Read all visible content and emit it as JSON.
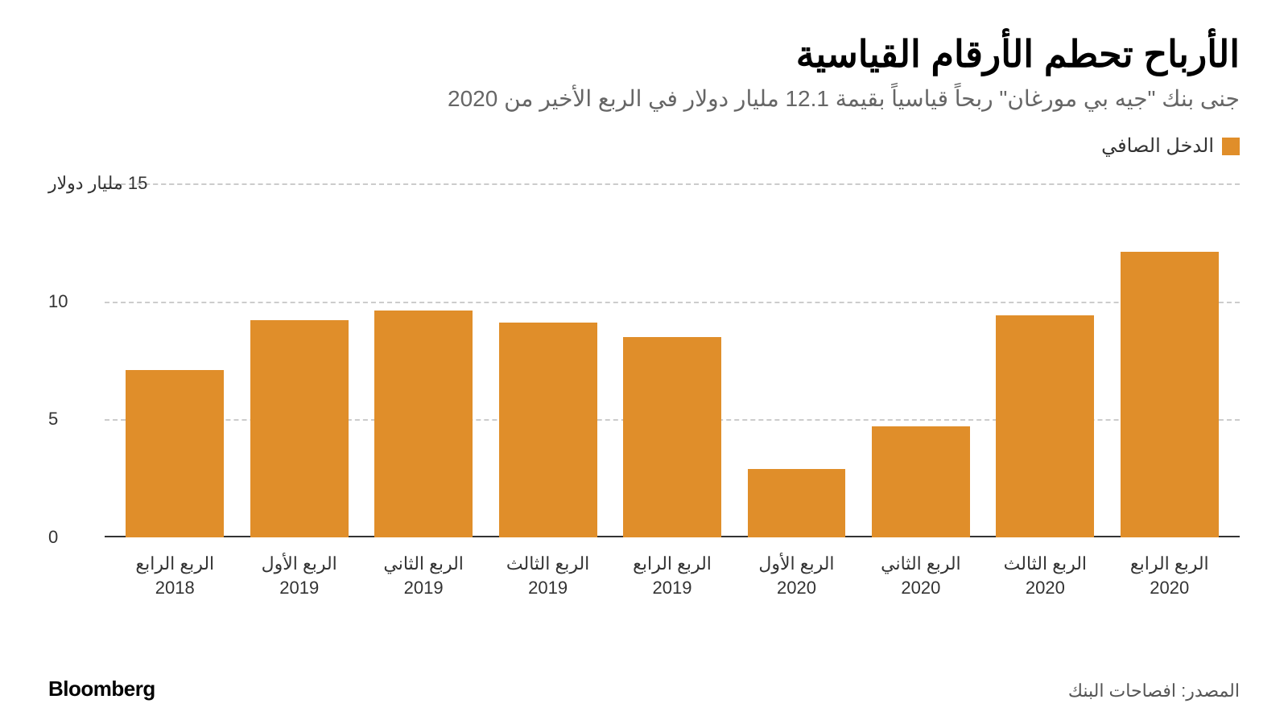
{
  "title": "الأرباح تحطم الأرقام القياسية",
  "subtitle": "جنى بنك \"جيه بي مورغان\" ربحاً قياسياً بقيمة 12.1 مليار دولار في الربع الأخير من 2020",
  "legend": {
    "label": "الدخل الصافي",
    "color": "#e08e2a"
  },
  "chart": {
    "type": "bar",
    "bar_color": "#e08e2a",
    "background_color": "#ffffff",
    "grid_color": "#cccccc",
    "baseline_color": "#333333",
    "y": {
      "min": 0,
      "max": 15,
      "ticks": [
        0,
        5,
        10,
        15
      ],
      "top_label": "15 مليار دولار",
      "labels": {
        "0": "0",
        "5": "5",
        "10": "10"
      }
    },
    "bars": [
      {
        "q": "الربع الرابع",
        "y": "2018",
        "value": 7.1
      },
      {
        "q": "الربع الأول",
        "y": "2019",
        "value": 9.2
      },
      {
        "q": "الربع الثاني",
        "y": "2019",
        "value": 9.6
      },
      {
        "q": "الربع الثالث",
        "y": "2019",
        "value": 9.1
      },
      {
        "q": "الربع الرابع",
        "y": "2019",
        "value": 8.5
      },
      {
        "q": "الربع الأول",
        "y": "2020",
        "value": 2.9
      },
      {
        "q": "الربع الثاني",
        "y": "2020",
        "value": 4.7
      },
      {
        "q": "الربع الثالث",
        "y": "2020",
        "value": 9.4
      },
      {
        "q": "الربع الرابع",
        "y": "2020",
        "value": 12.1
      }
    ],
    "label_fontsize": 22,
    "bar_width_ratio": 0.88
  },
  "source": "المصدر: افصاحات البنك",
  "brand": "Bloomberg"
}
